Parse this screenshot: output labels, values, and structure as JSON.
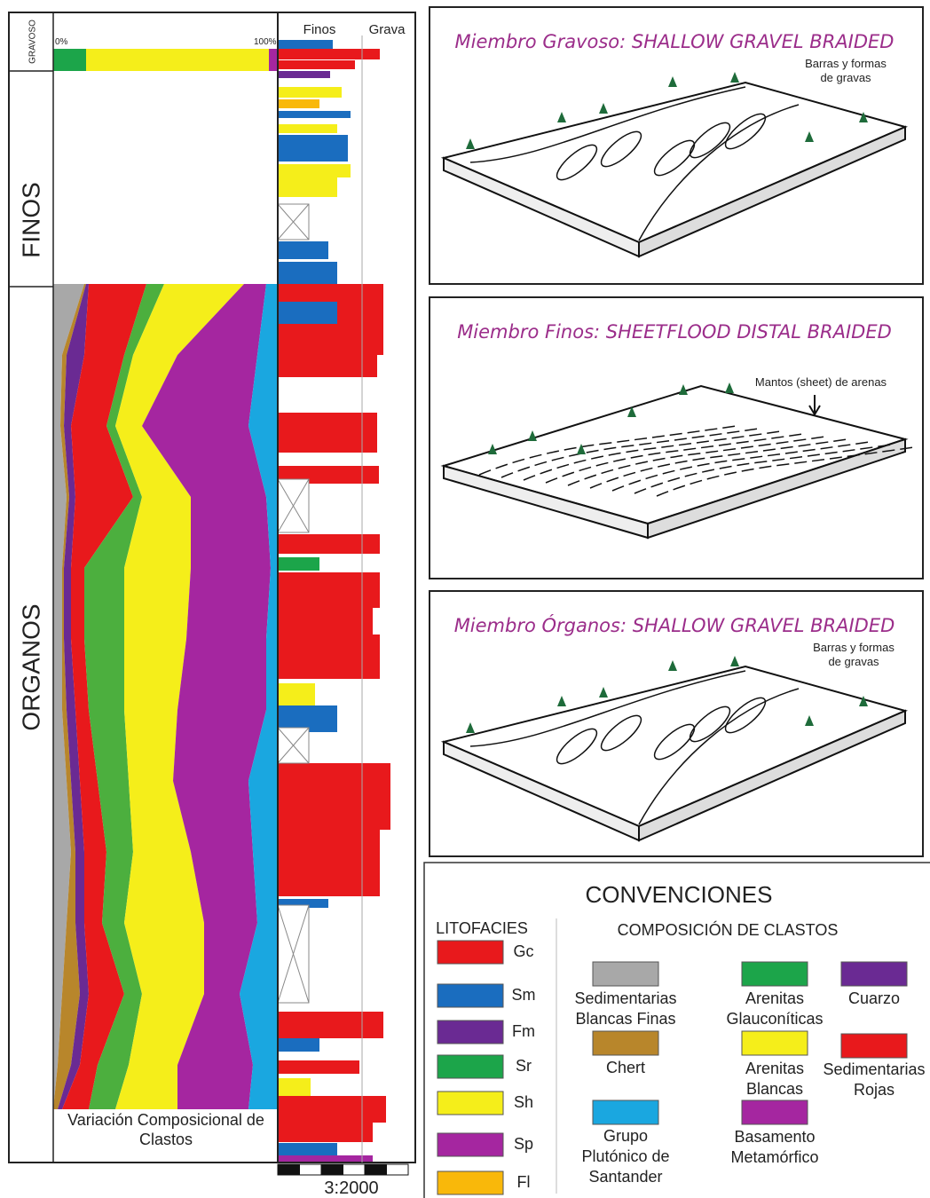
{
  "column_labels": {
    "gravoso": "GRAVOSO",
    "finos": "FINOS",
    "organos": "ORGANOS"
  },
  "composition_plot": {
    "start_label": "0%",
    "end_label": "100%",
    "caption": [
      "Variación Composicional de",
      "Clastos"
    ]
  },
  "lithology_column": {
    "headers": [
      "Finos",
      "Grava"
    ],
    "scale": "3:2000"
  },
  "panels": [
    {
      "title": "Miembro Gravoso: SHALLOW GRAVEL BRAIDED",
      "annotation": [
        "Barras y formas",
        "de gravas"
      ]
    },
    {
      "title": "Miembro Finos: SHEETFLOOD DISTAL BRAIDED",
      "annotation": [
        "Mantos (sheet) de arenas"
      ]
    },
    {
      "title": "Miembro Órganos: SHALLOW GRAVEL BRAIDED",
      "annotation": [
        "Barras y formas",
        "de gravas"
      ]
    }
  ],
  "legend": {
    "title": "CONVENCIONES",
    "litofacies_title": "LITOFACIES",
    "litofacies": [
      "Gc",
      "Sm",
      "Fm",
      "Sr",
      "Sh",
      "Sp",
      "Fl"
    ],
    "composition_title": "COMPOSICIÓN DE CLASTOS",
    "composition": [
      [
        "Sedimentarias",
        "Blancas Finas"
      ],
      [
        "Chert"
      ],
      [
        "Grupo",
        "Plutónico de",
        "Santander"
      ],
      [
        "Arenitas",
        "Glauconíticas"
      ],
      [
        "Arenitas",
        "Blancas"
      ],
      [
        "Basamento",
        "Metamórfico"
      ],
      [
        "Cuarzo"
      ],
      [
        "Sedimentarias",
        "Rojas"
      ]
    ]
  }
}
